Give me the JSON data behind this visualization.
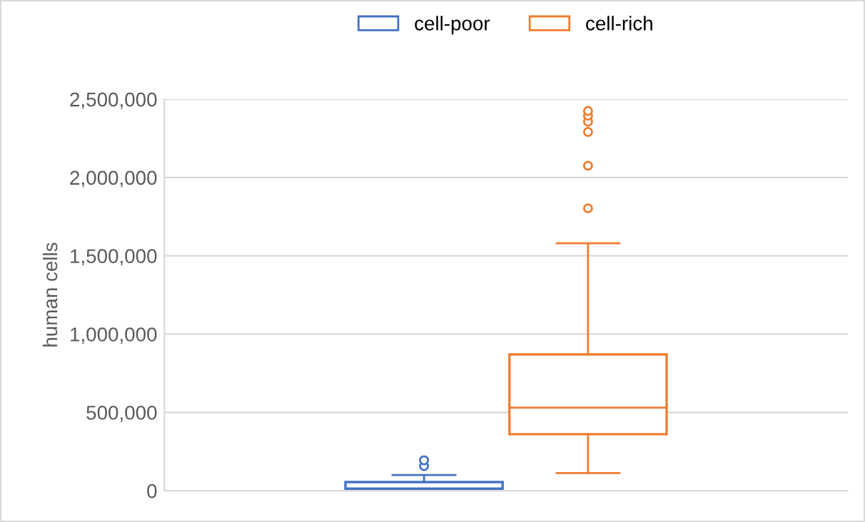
{
  "chart_data": {
    "type": "box",
    "ylabel": "human cells",
    "categories": [
      null
    ],
    "series": [
      {
        "name": "cell-poor",
        "color": "#4472c4",
        "boxes": [
          {
            "low": 0,
            "q1": 5000,
            "median": 15000,
            "q3": 55000,
            "high": 100000,
            "outliers": [
              157000,
              194000
            ]
          }
        ]
      },
      {
        "name": "cell-rich",
        "color": "#ed7d31",
        "boxes": [
          {
            "low": 112000,
            "q1": 361000,
            "median": 530000,
            "q3": 870000,
            "high": 1580000,
            "outliers": [
              1803000,
              2075000,
              2291000,
              2357000,
              2394000,
              2425000
            ]
          }
        ]
      }
    ],
    "ylim": [
      0,
      2500000
    ],
    "yticks": [
      0,
      {
        "value": 500000,
        "label": "500,000"
      },
      {
        "value": 1000000,
        "label": "1,000,000"
      },
      {
        "value": 1500000,
        "label": "1,500,000"
      },
      {
        "value": 2000000,
        "label": "2,000,000"
      },
      {
        "value": 2500000,
        "label": "2,500,000"
      }
    ],
    "grid": "y",
    "legend": "top"
  }
}
